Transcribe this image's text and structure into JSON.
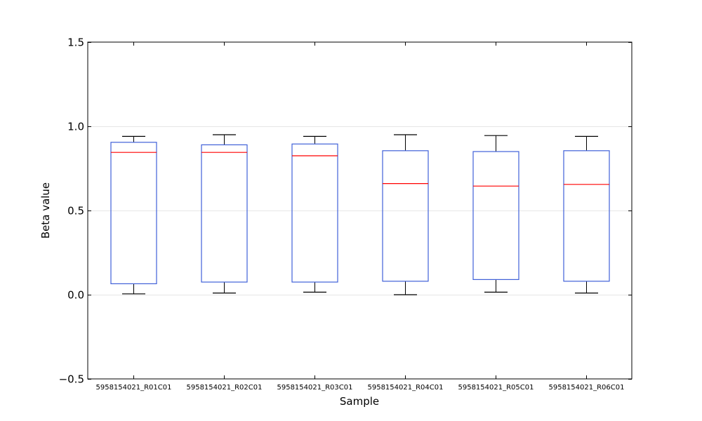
{
  "chart_data": {
    "type": "boxplot",
    "title": "",
    "xlabel": "Sample",
    "ylabel": "Beta value",
    "ylim": [
      -0.5,
      1.5
    ],
    "yticks": [
      -0.5,
      0.0,
      0.5,
      1.0,
      1.5
    ],
    "ytick_labels": [
      "−0.5",
      "0.0",
      "0.5",
      "1.0",
      "1.5"
    ],
    "grid": "horizontal, light",
    "categories": [
      "5958154021_R01C01",
      "5958154021_R02C01",
      "5958154021_R03C01",
      "5958154021_R04C01",
      "5958154021_R05C01",
      "5958154021_R06C01"
    ],
    "boxes": [
      {
        "whisker_low": 0.005,
        "q1": 0.065,
        "median": 0.845,
        "q3": 0.905,
        "whisker_high": 0.94
      },
      {
        "whisker_low": 0.01,
        "q1": 0.075,
        "median": 0.845,
        "q3": 0.89,
        "whisker_high": 0.95
      },
      {
        "whisker_low": 0.015,
        "q1": 0.075,
        "median": 0.825,
        "q3": 0.895,
        "whisker_high": 0.94
      },
      {
        "whisker_low": 0.0,
        "q1": 0.08,
        "median": 0.66,
        "q3": 0.855,
        "whisker_high": 0.95
      },
      {
        "whisker_low": 0.015,
        "q1": 0.09,
        "median": 0.645,
        "q3": 0.85,
        "whisker_high": 0.945
      },
      {
        "whisker_low": 0.01,
        "q1": 0.08,
        "median": 0.655,
        "q3": 0.855,
        "whisker_high": 0.94
      }
    ],
    "colors": {
      "box": "#4060d8",
      "median": "#ff0000",
      "whisker": "#000000",
      "grid": "#e6e6e6"
    }
  }
}
